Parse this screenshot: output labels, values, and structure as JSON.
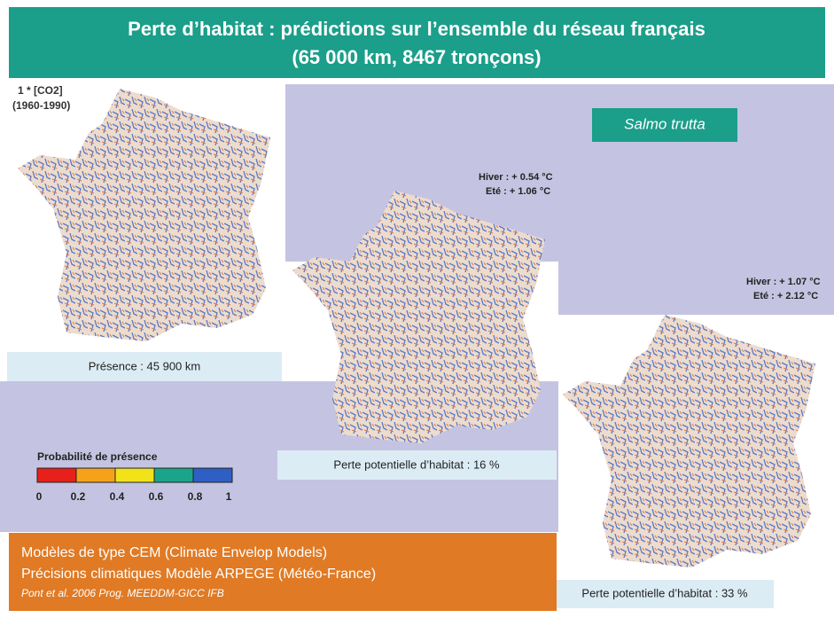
{
  "header": {
    "title_lines": [
      "Perte d’habitat : prédictions sur l’ensemble du réseau français",
      "(65 000 km, 8467 tronçons)"
    ]
  },
  "species": "Salmo trutta",
  "maps": [
    {
      "labels": [
        "1 * [CO2]",
        "(1960-1990)"
      ],
      "caption": "Présence : 45 900 km"
    },
    {
      "labels": [
        "Hiver : + 0.54  °C",
        "Eté : + 1.06  °C"
      ],
      "caption": "Perte potentielle d’habitat : 16 %"
    },
    {
      "labels": [
        "Hiver : + 1.07  °C",
        "Eté : + 2.12  °C"
      ],
      "caption": "Perte potentielle d’habitat : 33 %"
    }
  ],
  "legend": {
    "title": "Probabilité de présence",
    "ticks": [
      "0",
      "0.2",
      "0.4",
      "0.6",
      "0.8",
      "1"
    ]
  },
  "footer": {
    "lines": [
      "Modèles de type CEM (Climate Envelop Models)",
      "Précisions climatiques Modèle ARPEGE (Météo-France)"
    ],
    "reference": "Pont et al. 2006 Prog. MEEDDM-GICC IFB"
  }
}
